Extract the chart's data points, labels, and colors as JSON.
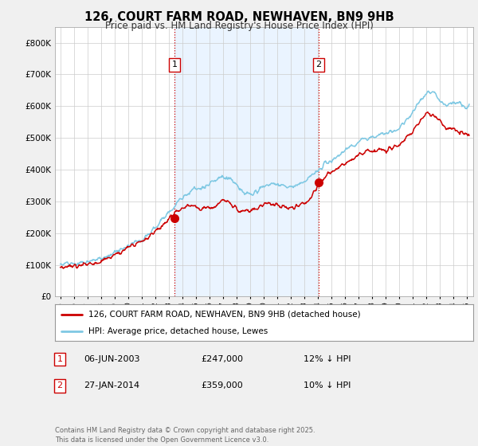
{
  "title": "126, COURT FARM ROAD, NEWHAVEN, BN9 9HB",
  "subtitle": "Price paid vs. HM Land Registry's House Price Index (HPI)",
  "legend_line1": "126, COURT FARM ROAD, NEWHAVEN, BN9 9HB (detached house)",
  "legend_line2": "HPI: Average price, detached house, Lewes",
  "annotation1_label": "1",
  "annotation1_date": "06-JUN-2003",
  "annotation1_price": "£247,000",
  "annotation1_hpi": "12% ↓ HPI",
  "annotation2_label": "2",
  "annotation2_date": "27-JAN-2014",
  "annotation2_price": "£359,000",
  "annotation2_hpi": "10% ↓ HPI",
  "footer": "Contains HM Land Registry data © Crown copyright and database right 2025.\nThis data is licensed under the Open Government Licence v3.0.",
  "hpi_color": "#7ec8e3",
  "price_color": "#cc0000",
  "background_color": "#f0f0f0",
  "plot_background": "#ffffff",
  "shade_color": "#ddeeff",
  "ylim": [
    0,
    850000
  ],
  "yticks": [
    0,
    100000,
    200000,
    300000,
    400000,
    500000,
    600000,
    700000,
    800000
  ],
  "xlim_start": 1994.6,
  "xlim_end": 2025.5,
  "sale1_x": 2003.44,
  "sale1_y": 247000,
  "sale2_x": 2014.08,
  "sale2_y": 359000,
  "vline1_x": 2003.44,
  "vline2_x": 2014.08,
  "hpi_data": [
    [
      1995.0,
      100000
    ],
    [
      1995.5,
      102000
    ],
    [
      1996.0,
      103000
    ],
    [
      1996.5,
      105000
    ],
    [
      1997.0,
      108000
    ],
    [
      1997.5,
      113000
    ],
    [
      1998.0,
      120000
    ],
    [
      1998.5,
      128000
    ],
    [
      1999.0,
      137000
    ],
    [
      1999.5,
      148000
    ],
    [
      2000.0,
      158000
    ],
    [
      2000.5,
      170000
    ],
    [
      2001.0,
      182000
    ],
    [
      2001.5,
      195000
    ],
    [
      2002.0,
      215000
    ],
    [
      2002.5,
      240000
    ],
    [
      2003.0,
      265000
    ],
    [
      2003.5,
      285000
    ],
    [
      2004.0,
      310000
    ],
    [
      2004.5,
      330000
    ],
    [
      2005.0,
      340000
    ],
    [
      2005.5,
      345000
    ],
    [
      2006.0,
      355000
    ],
    [
      2006.5,
      368000
    ],
    [
      2007.0,
      380000
    ],
    [
      2007.5,
      370000
    ],
    [
      2008.0,
      350000
    ],
    [
      2008.5,
      330000
    ],
    [
      2009.0,
      320000
    ],
    [
      2009.5,
      330000
    ],
    [
      2010.0,
      345000
    ],
    [
      2010.5,
      355000
    ],
    [
      2011.0,
      355000
    ],
    [
      2011.5,
      350000
    ],
    [
      2012.0,
      345000
    ],
    [
      2012.5,
      350000
    ],
    [
      2013.0,
      360000
    ],
    [
      2013.5,
      375000
    ],
    [
      2014.0,
      395000
    ],
    [
      2014.5,
      415000
    ],
    [
      2015.0,
      430000
    ],
    [
      2015.5,
      445000
    ],
    [
      2016.0,
      460000
    ],
    [
      2016.5,
      475000
    ],
    [
      2017.0,
      490000
    ],
    [
      2017.5,
      500000
    ],
    [
      2018.0,
      505000
    ],
    [
      2018.5,
      510000
    ],
    [
      2019.0,
      515000
    ],
    [
      2019.5,
      520000
    ],
    [
      2020.0,
      530000
    ],
    [
      2020.5,
      555000
    ],
    [
      2021.0,
      580000
    ],
    [
      2021.5,
      610000
    ],
    [
      2022.0,
      640000
    ],
    [
      2022.5,
      645000
    ],
    [
      2023.0,
      620000
    ],
    [
      2023.5,
      600000
    ],
    [
      2024.0,
      610000
    ],
    [
      2024.5,
      605000
    ],
    [
      2025.0,
      600000
    ]
  ],
  "price_data": [
    [
      1995.0,
      95000
    ],
    [
      1995.5,
      97000
    ],
    [
      1996.0,
      98000
    ],
    [
      1996.5,
      99000
    ],
    [
      1997.0,
      100000
    ],
    [
      1997.5,
      105000
    ],
    [
      1998.0,
      112000
    ],
    [
      1998.5,
      120000
    ],
    [
      1999.0,
      130000
    ],
    [
      1999.5,
      142000
    ],
    [
      2000.0,
      153000
    ],
    [
      2000.5,
      165000
    ],
    [
      2001.0,
      175000
    ],
    [
      2001.5,
      188000
    ],
    [
      2002.0,
      205000
    ],
    [
      2002.5,
      228000
    ],
    [
      2003.0,
      248000
    ],
    [
      2003.5,
      265000
    ],
    [
      2004.0,
      278000
    ],
    [
      2004.5,
      285000
    ],
    [
      2005.0,
      285000
    ],
    [
      2005.5,
      278000
    ],
    [
      2006.0,
      280000
    ],
    [
      2006.5,
      290000
    ],
    [
      2007.0,
      305000
    ],
    [
      2007.5,
      295000
    ],
    [
      2008.0,
      278000
    ],
    [
      2008.5,
      268000
    ],
    [
      2009.0,
      272000
    ],
    [
      2009.5,
      278000
    ],
    [
      2010.0,
      290000
    ],
    [
      2010.5,
      295000
    ],
    [
      2011.0,
      292000
    ],
    [
      2011.5,
      285000
    ],
    [
      2012.0,
      278000
    ],
    [
      2012.5,
      282000
    ],
    [
      2013.0,
      292000
    ],
    [
      2013.5,
      310000
    ],
    [
      2014.0,
      355000
    ],
    [
      2014.5,
      375000
    ],
    [
      2015.0,
      390000
    ],
    [
      2015.5,
      405000
    ],
    [
      2016.0,
      418000
    ],
    [
      2016.5,
      430000
    ],
    [
      2017.0,
      445000
    ],
    [
      2017.5,
      455000
    ],
    [
      2018.0,
      458000
    ],
    [
      2018.5,
      462000
    ],
    [
      2019.0,
      465000
    ],
    [
      2019.5,
      468000
    ],
    [
      2020.0,
      475000
    ],
    [
      2020.5,
      498000
    ],
    [
      2021.0,
      520000
    ],
    [
      2021.5,
      548000
    ],
    [
      2022.0,
      572000
    ],
    [
      2022.5,
      575000
    ],
    [
      2023.0,
      555000
    ],
    [
      2023.5,
      530000
    ],
    [
      2024.0,
      530000
    ],
    [
      2024.5,
      520000
    ],
    [
      2025.0,
      515000
    ]
  ]
}
